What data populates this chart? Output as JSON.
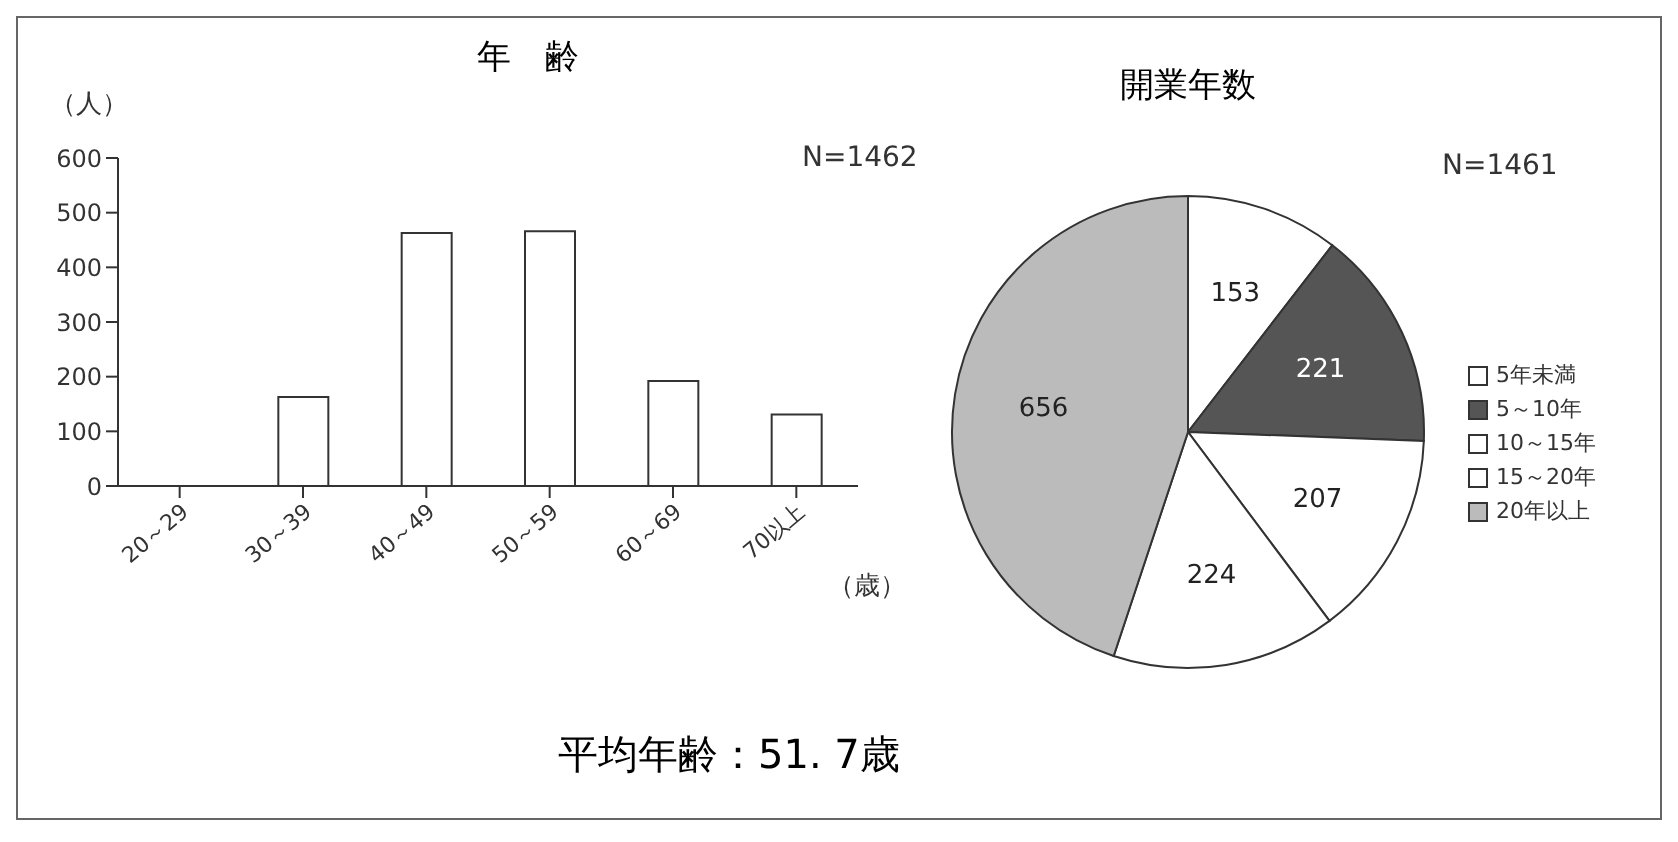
{
  "chart_data": [
    {
      "type": "bar",
      "title": "年　齢",
      "ylabel": "（人）",
      "xlabel": "（歳）",
      "categories": [
        "20～29",
        "30～39",
        "40～49",
        "50～59",
        "60～69",
        "70以上"
      ],
      "values": [
        0,
        163,
        463,
        466,
        192,
        131
      ],
      "color": "#ffffff",
      "ylim": [
        0,
        600
      ],
      "yticks": [
        0,
        100,
        200,
        300,
        400,
        500,
        600
      ],
      "grid": false,
      "legend": false,
      "annotations": [
        "N=1462",
        "平均年齢：51. 7歳"
      ]
    },
    {
      "type": "pie",
      "title": "開業年数",
      "categories": [
        "5年未満",
        "5～10年",
        "10～15年",
        "15～20年",
        "20年以上"
      ],
      "values": [
        153,
        221,
        207,
        224,
        656
      ],
      "colors": [
        "#ffffff",
        "#555555",
        "#ffffff",
        "#ffffff",
        "#bbbbbb"
      ],
      "data_labels": true,
      "legend": "right",
      "annotations": [
        "N=1461"
      ]
    }
  ]
}
